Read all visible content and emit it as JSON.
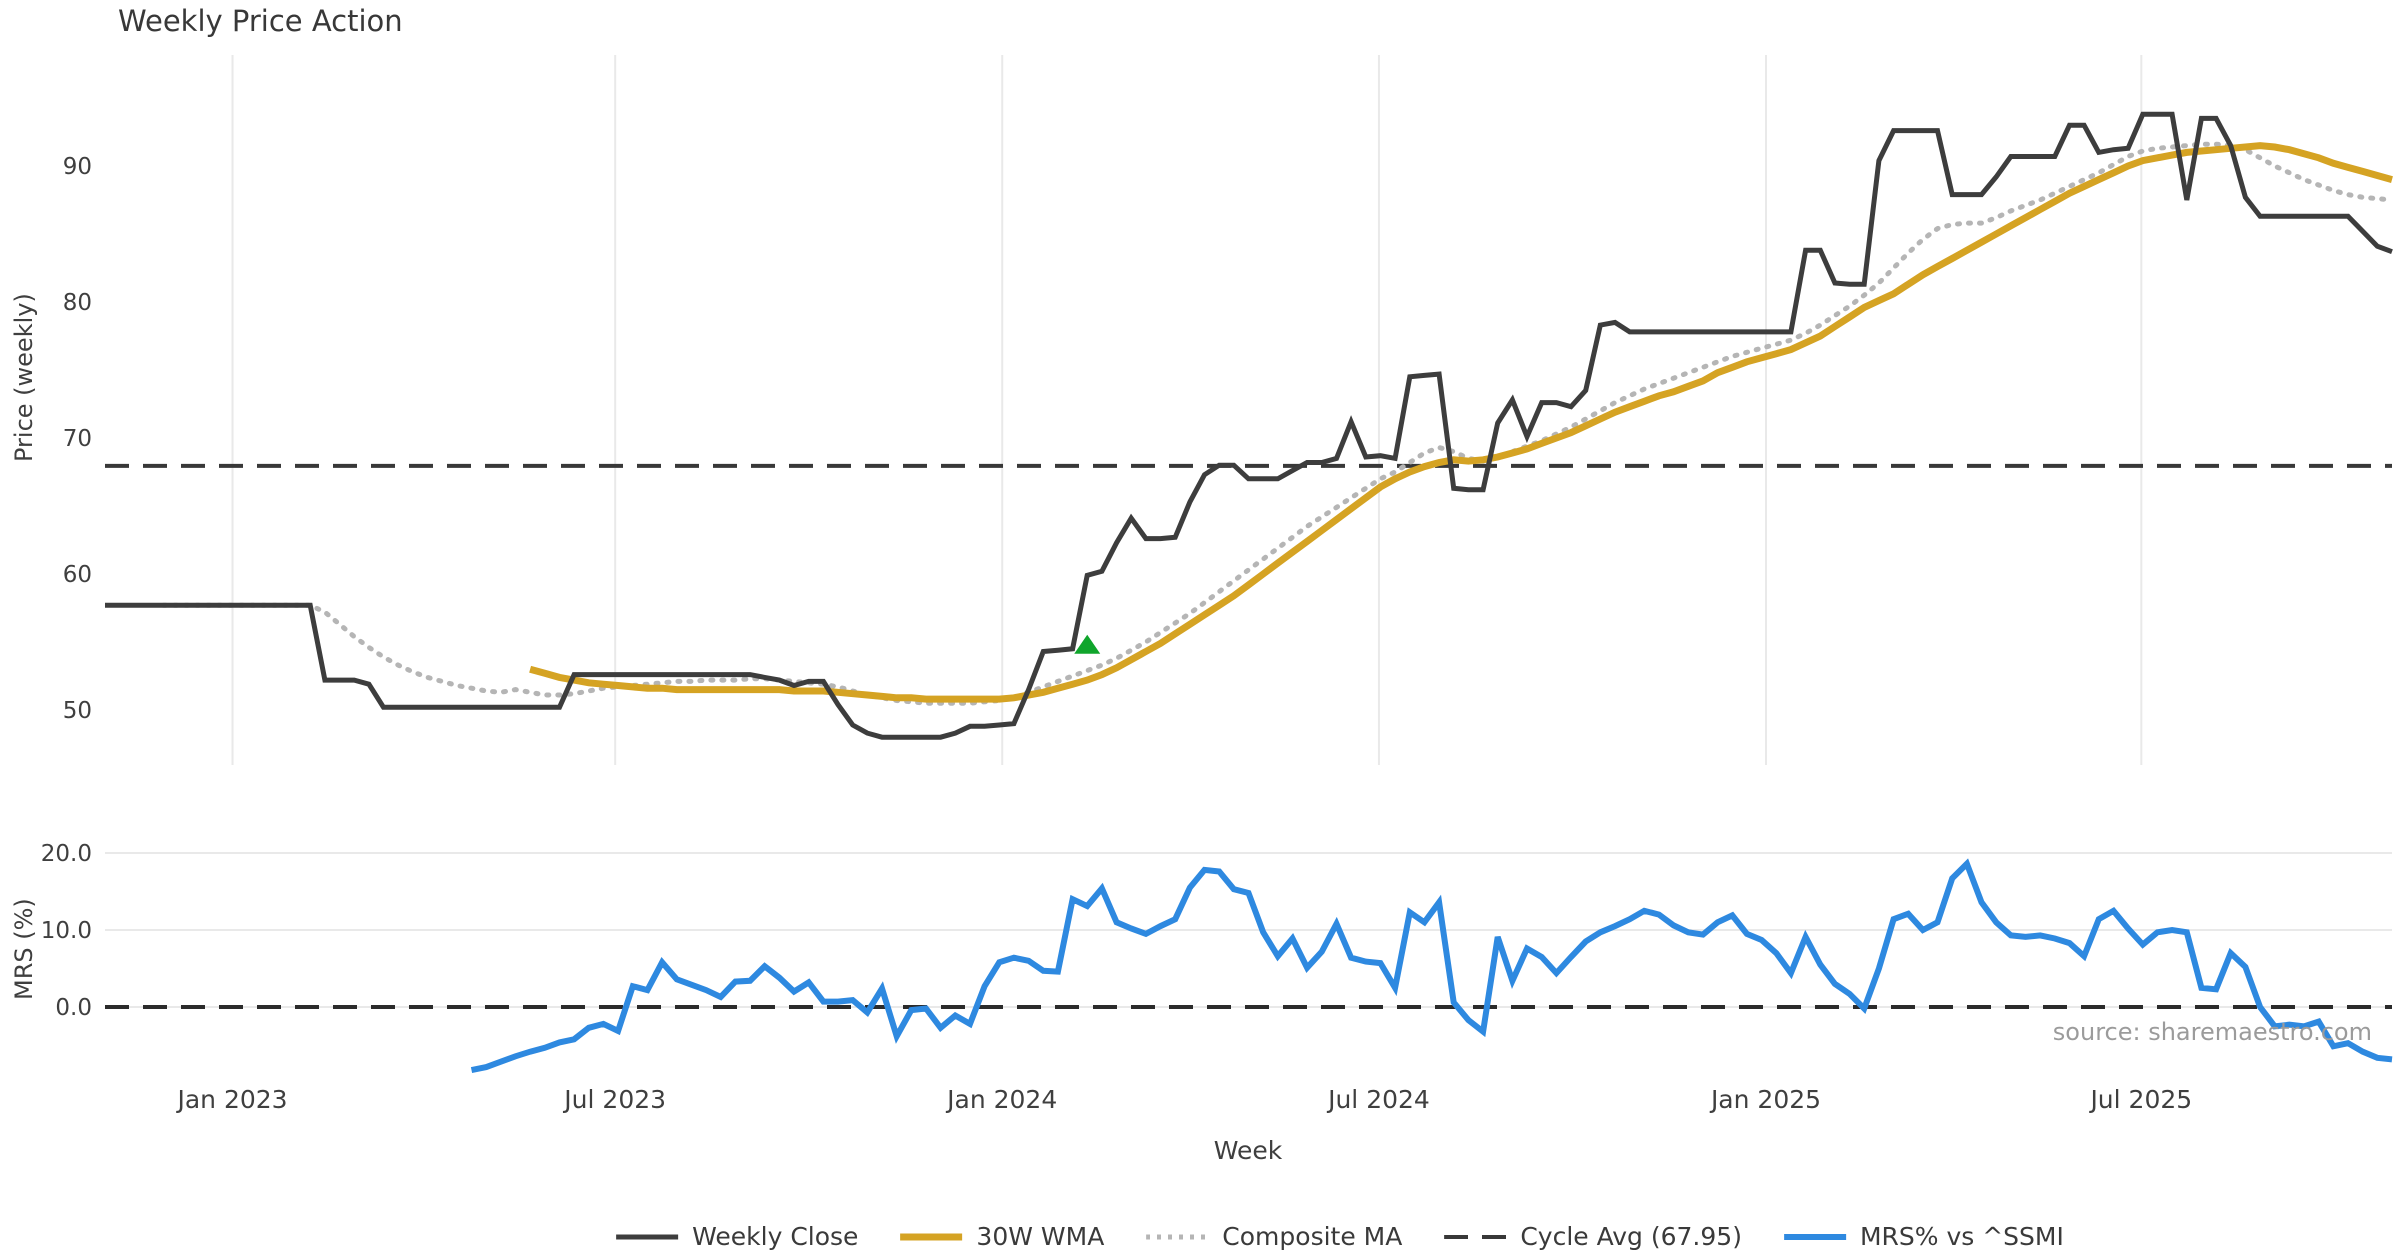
{
  "title": "Weekly Price Action",
  "source_note": "source: sharemaestro.com",
  "colors": {
    "weekly_close": "#3d3d3d",
    "wma": "#d5a323",
    "composite": "#b5b5b5",
    "cycle_avg": "#383838",
    "mrs": "#2e89e0",
    "signal": "#10a52c",
    "grid": "#e9e9e9",
    "tick_text": "#3f3f3f",
    "source_text": "#9b9b9b"
  },
  "legend": [
    {
      "label": "Weekly Close",
      "type": "solid",
      "thickness": 5,
      "color": "#3d3d3d"
    },
    {
      "label": "30W WMA",
      "type": "solid",
      "thickness": 7,
      "color": "#d5a323"
    },
    {
      "label": "Composite MA",
      "type": "dotted",
      "thickness": 5,
      "color": "#b5b5b5"
    },
    {
      "label": "Cycle Avg (67.95)",
      "type": "dashed",
      "thickness": 4,
      "color": "#383838"
    },
    {
      "label": "MRS% vs ^SSMI",
      "type": "solid",
      "thickness": 6,
      "color": "#2e89e0"
    }
  ],
  "axes": {
    "x_label": "Week",
    "x_ticks": [
      {
        "label": "Jan 2023",
        "week": 8.7
      },
      {
        "label": "Jul 2023",
        "week": 34.8
      },
      {
        "label": "Jan 2024",
        "week": 61.2
      },
      {
        "label": "Jul 2024",
        "week": 86.9
      },
      {
        "label": "Jan 2025",
        "week": 113.3
      },
      {
        "label": "Jul 2025",
        "week": 138.9
      }
    ],
    "price_label": "Price (weekly)",
    "price_ticks": [
      {
        "label": "50",
        "value": 50
      },
      {
        "label": "60",
        "value": 60
      },
      {
        "label": "70",
        "value": 70
      },
      {
        "label": "80",
        "value": 80
      },
      {
        "label": "90",
        "value": 90
      }
    ],
    "mrs_label": "MRS (%)",
    "mrs_ticks": [
      {
        "label": "20.0",
        "value": 20
      },
      {
        "label": "10.0",
        "value": 10
      },
      {
        "label": "0.0",
        "value": 0
      }
    ]
  },
  "chart_data": [
    {
      "type": "line",
      "panel": "price",
      "title": "Weekly Price Action",
      "xlabel": "Week",
      "ylabel": "Price (weekly)",
      "ylim": [
        46,
        98
      ],
      "x_is_weekly_index_from": "2022-10-31",
      "grid": "vertical-only",
      "cycle_avg_line": {
        "value": 67.95,
        "style": "dashed",
        "color": "#383838"
      },
      "signal_marker": {
        "week": 67,
        "price": 54.8,
        "shape": "triangle-up",
        "color": "#10a52c"
      },
      "series": [
        {
          "name": "Weekly Close",
          "style": "solid",
          "color": "#3d3d3d",
          "width": 5,
          "start_week": 0,
          "values": [
            57.7,
            57.7,
            57.7,
            57.7,
            57.7,
            57.7,
            57.7,
            57.7,
            57.7,
            57.7,
            57.7,
            57.7,
            57.7,
            57.7,
            57.7,
            52.2,
            52.2,
            52.2,
            51.9,
            50.2,
            50.2,
            50.2,
            50.2,
            50.2,
            50.2,
            50.2,
            50.2,
            50.2,
            50.2,
            50.2,
            50.2,
            50.2,
            52.6,
            52.6,
            52.6,
            52.6,
            52.6,
            52.6,
            52.6,
            52.6,
            52.6,
            52.6,
            52.6,
            52.6,
            52.6,
            52.4,
            52.2,
            51.8,
            52.1,
            52.1,
            50.4,
            48.9,
            48.3,
            48.0,
            48.0,
            48.0,
            48.0,
            48.0,
            48.3,
            48.8,
            48.8,
            48.9,
            49.0,
            51.5,
            54.3,
            54.4,
            54.5,
            59.9,
            60.2,
            62.3,
            64.1,
            62.6,
            62.6,
            62.7,
            65.3,
            67.3,
            68.0,
            68.0,
            67.0,
            67.0,
            67.0,
            67.6,
            68.2,
            68.2,
            68.5,
            71.2,
            68.6,
            68.7,
            68.5,
            74.5,
            74.6,
            74.7,
            66.3,
            66.2,
            66.2,
            71.1,
            72.8,
            70.1,
            72.6,
            72.6,
            72.3,
            73.5,
            78.3,
            78.5,
            77.8,
            77.8,
            77.8,
            77.8,
            77.8,
            77.8,
            77.8,
            77.8,
            77.8,
            77.8,
            77.8,
            77.8,
            83.8,
            83.8,
            81.4,
            81.3,
            81.3,
            90.4,
            92.6,
            92.6,
            92.6,
            92.6,
            87.9,
            87.9,
            87.9,
            89.2,
            90.7,
            90.7,
            90.7,
            90.7,
            93.0,
            93.0,
            91.0,
            91.2,
            91.3,
            93.8,
            93.8,
            93.8,
            87.5,
            93.5,
            93.5,
            91.5,
            87.7,
            86.3,
            86.3,
            86.3,
            86.3,
            86.3,
            86.3,
            86.3,
            85.2,
            84.1,
            83.7
          ]
        },
        {
          "name": "30W WMA",
          "style": "solid",
          "color": "#d5a323",
          "width": 7,
          "start_week": 29,
          "values": [
            53.0,
            52.7,
            52.4,
            52.2,
            52.0,
            51.9,
            51.8,
            51.7,
            51.6,
            51.6,
            51.5,
            51.5,
            51.5,
            51.5,
            51.5,
            51.5,
            51.5,
            51.5,
            51.4,
            51.4,
            51.4,
            51.3,
            51.2,
            51.1,
            51.0,
            50.9,
            50.9,
            50.8,
            50.8,
            50.8,
            50.8,
            50.8,
            50.8,
            50.9,
            51.1,
            51.3,
            51.6,
            51.9,
            52.2,
            52.6,
            53.1,
            53.7,
            54.3,
            54.9,
            55.6,
            56.3,
            57.0,
            57.7,
            58.4,
            59.2,
            60.0,
            60.8,
            61.6,
            62.4,
            63.2,
            64.0,
            64.8,
            65.6,
            66.4,
            67.0,
            67.5,
            67.9,
            68.2,
            68.4,
            68.3,
            68.4,
            68.6,
            68.9,
            69.2,
            69.6,
            70.0,
            70.4,
            70.9,
            71.4,
            71.9,
            72.3,
            72.7,
            73.1,
            73.4,
            73.8,
            74.2,
            74.8,
            75.2,
            75.6,
            75.9,
            76.2,
            76.5,
            77.0,
            77.5,
            78.2,
            78.9,
            79.6,
            80.1,
            80.6,
            81.3,
            82.0,
            82.6,
            83.2,
            83.8,
            84.4,
            85.0,
            85.6,
            86.2,
            86.8,
            87.4,
            88.0,
            88.5,
            89.0,
            89.5,
            90.0,
            90.4,
            90.6,
            90.8,
            91.0,
            91.1,
            91.2,
            91.3,
            91.4,
            91.5,
            91.4,
            91.2,
            90.9,
            90.6,
            90.2,
            89.9,
            89.6,
            89.3,
            89.0
          ]
        },
        {
          "name": "Composite MA",
          "style": "dotted",
          "color": "#b5b5b5",
          "width": 5,
          "start_week": 4,
          "values": [
            57.7,
            57.7,
            57.7,
            57.7,
            57.7,
            57.7,
            57.7,
            57.7,
            57.7,
            57.7,
            57.7,
            57.2,
            56.3,
            55.4,
            54.6,
            53.9,
            53.3,
            52.8,
            52.4,
            52.1,
            51.8,
            51.6,
            51.4,
            51.3,
            51.5,
            51.3,
            51.1,
            51.1,
            51.2,
            51.4,
            51.6,
            51.7,
            51.8,
            51.9,
            52.0,
            52.1,
            52.1,
            52.2,
            52.2,
            52.2,
            52.3,
            52.3,
            52.2,
            52.1,
            52.0,
            51.9,
            51.7,
            51.4,
            51.1,
            50.9,
            50.7,
            50.6,
            50.5,
            50.5,
            50.5,
            50.5,
            50.6,
            50.7,
            50.9,
            51.3,
            51.7,
            52.1,
            52.5,
            52.9,
            53.3,
            53.8,
            54.4,
            55.0,
            55.7,
            56.4,
            57.1,
            57.9,
            58.7,
            59.5,
            60.3,
            61.1,
            61.9,
            62.7,
            63.5,
            64.2,
            64.9,
            65.6,
            66.3,
            67.0,
            67.5,
            68.2,
            68.9,
            69.3,
            69.0,
            68.5,
            68.3,
            68.6,
            69.0,
            69.4,
            69.8,
            70.3,
            70.8,
            71.4,
            72.0,
            72.6,
            73.1,
            73.6,
            74.0,
            74.4,
            74.8,
            75.2,
            75.6,
            76.0,
            76.3,
            76.6,
            76.9,
            77.2,
            77.7,
            78.3,
            79.0,
            79.7,
            80.5,
            81.4,
            82.5,
            83.6,
            84.6,
            85.4,
            85.7,
            85.8,
            85.8,
            86.2,
            86.7,
            87.1,
            87.5,
            88.0,
            88.5,
            89.0,
            89.5,
            90.1,
            90.7,
            91.1,
            91.3,
            91.4,
            91.5,
            91.6,
            91.6,
            91.5,
            91.2,
            90.6,
            90.0,
            89.5,
            89.0,
            88.6,
            88.2,
            87.9,
            87.7,
            87.6,
            87.5
          ]
        }
      ]
    },
    {
      "type": "line",
      "panel": "mrs",
      "xlabel": "Week",
      "ylabel": "MRS (%)",
      "ylim": [
        -8.8,
        21.2
      ],
      "grid": "horizontal-only",
      "zero_line": {
        "value": 0,
        "style": "dashed",
        "color": "#2b2b2b"
      },
      "series": [
        {
          "name": "MRS% vs ^SSMI",
          "style": "solid",
          "color": "#2e89e0",
          "width": 6,
          "start_week": 25,
          "values": [
            -8.2,
            -7.8,
            -7.1,
            -6.4,
            -5.8,
            -5.3,
            -4.6,
            -4.2,
            -2.7,
            -2.2,
            -3.1,
            2.7,
            2.2,
            5.8,
            3.6,
            2.9,
            2.2,
            1.3,
            3.3,
            3.4,
            5.3,
            3.8,
            2.0,
            3.2,
            0.7,
            0.7,
            0.9,
            -0.7,
            2.4,
            -3.8,
            -0.4,
            -0.2,
            -2.7,
            -1.1,
            -2.2,
            2.7,
            5.8,
            6.4,
            6.0,
            4.7,
            4.6,
            14.0,
            13.1,
            15.4,
            11.0,
            10.2,
            9.5,
            10.5,
            11.4,
            15.5,
            17.8,
            17.6,
            15.3,
            14.8,
            9.7,
            6.6,
            8.9,
            5.1,
            7.2,
            10.8,
            6.4,
            5.9,
            5.7,
            2.5,
            12.3,
            11.0,
            13.6,
            0.6,
            -1.7,
            -3.2,
            9.1,
            3.4,
            7.6,
            6.5,
            4.4,
            6.5,
            8.5,
            9.7,
            10.5,
            11.4,
            12.5,
            12.0,
            10.6,
            9.7,
            9.4,
            11.0,
            11.9,
            9.5,
            8.7,
            7.0,
            4.4,
            9.1,
            5.5,
            3.0,
            1.7,
            -0.2,
            5.0,
            11.4,
            12.1,
            10.0,
            11.0,
            16.7,
            18.6,
            13.6,
            11.0,
            9.3,
            9.1,
            9.3,
            8.9,
            8.3,
            6.6,
            11.4,
            12.5,
            10.2,
            8.1,
            9.7,
            10.0,
            9.7,
            2.5,
            2.3,
            7.0,
            5.2,
            0.0,
            -2.5,
            -2.3,
            -2.5,
            -1.9,
            -5.1,
            -4.7,
            -5.8,
            -6.6,
            -6.8
          ]
        }
      ]
    }
  ]
}
